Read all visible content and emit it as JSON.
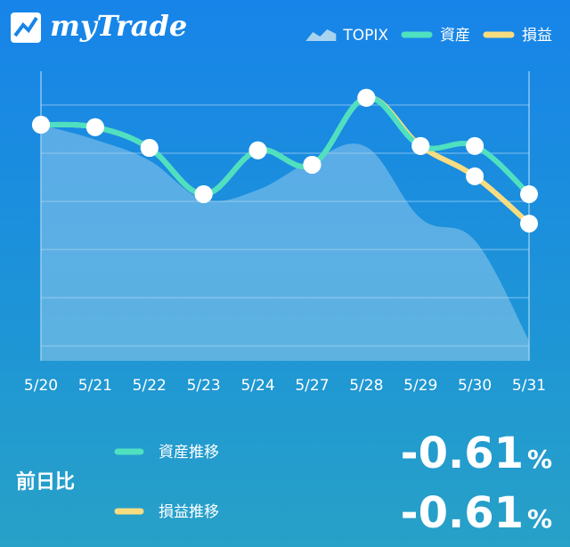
{
  "app_name": "myTrade",
  "chart_data": {
    "type": "line",
    "categories": [
      "5/20",
      "5/21",
      "5/22",
      "5/23",
      "5/24",
      "5/27",
      "5/28",
      "5/29",
      "5/30",
      "5/31"
    ],
    "series": [
      {
        "name": "TOPIX",
        "kind": "area",
        "color": "#a8d4f0",
        "values": [
          45.9,
          42.8,
          38.5,
          30.4,
          32.4,
          38.5,
          41.3,
          26.5,
          21.9,
          1.1
        ]
      },
      {
        "name": "資産",
        "color": "#4fe0c0",
        "values": [
          45.9,
          45.4,
          41.1,
          31.5,
          40.6,
          37.6,
          51.5,
          41.5,
          41.5,
          31.5
        ]
      },
      {
        "name": "損益",
        "color": "#f7dd80",
        "values": [
          45.9,
          45.4,
          41.1,
          31.5,
          40.6,
          37.6,
          51.5,
          41.5,
          35.2,
          25.4
        ]
      }
    ],
    "ylim": [
      -4,
      57
    ],
    "yticks": [
      0,
      10,
      20,
      30,
      40,
      50
    ],
    "grid": true,
    "legend": "top-right"
  },
  "summary": {
    "label": "前日比",
    "unit": "%",
    "rows": [
      {
        "name": "資産推移",
        "color": "#4fe0c0",
        "value": "-0.61"
      },
      {
        "name": "損益推移",
        "color": "#f7dd80",
        "value": "-0.61"
      }
    ]
  }
}
